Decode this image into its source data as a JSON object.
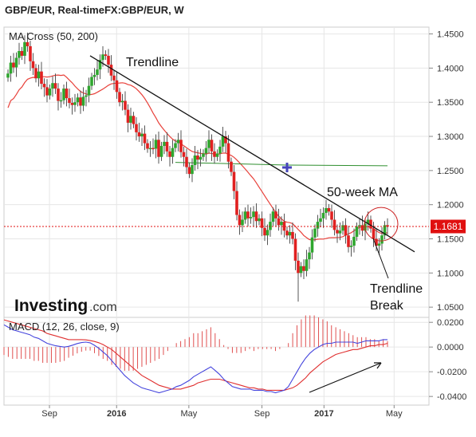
{
  "header": {
    "title": "GBP/EUR, Real-timeFX:GBP/EUR, W"
  },
  "colors": {
    "up": "#2ea62e",
    "down": "#e02020",
    "ma50": "#e8413a",
    "ma200": "#2f8f2f",
    "macd_line": "#4444dd",
    "signal_line": "#e03030",
    "hist": "#e05050",
    "trendline": "#111111",
    "price_marker": "#e01010",
    "grid": "#e6e6e6"
  },
  "chart_data": [
    {
      "type": "candlestick",
      "panel": "price",
      "legend": "MA Cross (50, 200)",
      "x_ticks": [
        "Sep",
        "2016",
        "May",
        "Sep",
        "2017",
        "May"
      ],
      "y_ticks": [
        "1.4500",
        "1.4000",
        "1.3500",
        "1.3000",
        "1.2500",
        "1.2000",
        "1.1500",
        "1.1000",
        "1.0500"
      ],
      "ylim": [
        1.035,
        1.46
      ],
      "current_price": "1.1681",
      "current_price_value": 1.1681,
      "annotations": {
        "trendline": "Trendline",
        "ma_label": "50-week MA",
        "break_label_1": "Trendline",
        "break_label_2": "Break"
      },
      "closes": [
        1.392,
        1.408,
        1.401,
        1.415,
        1.425,
        1.418,
        1.438,
        1.432,
        1.41,
        1.4,
        1.385,
        1.395,
        1.377,
        1.372,
        1.36,
        1.37,
        1.378,
        1.37,
        1.352,
        1.353,
        1.37,
        1.356,
        1.349,
        1.346,
        1.35,
        1.357,
        1.345,
        1.358,
        1.36,
        1.374,
        1.387,
        1.39,
        1.398,
        1.412,
        1.42,
        1.418,
        1.405,
        1.389,
        1.382,
        1.365,
        1.35,
        1.352,
        1.339,
        1.32,
        1.33,
        1.318,
        1.306,
        1.3,
        1.304,
        1.29,
        1.282,
        1.283,
        1.282,
        1.295,
        1.27,
        1.286,
        1.292,
        1.278,
        1.27,
        1.283,
        1.29,
        1.295,
        1.277,
        1.27,
        1.255,
        1.245,
        1.258,
        1.272,
        1.266,
        1.27,
        1.275,
        1.283,
        1.295,
        1.278,
        1.27,
        1.275,
        1.285,
        1.3,
        1.29,
        1.263,
        1.248,
        1.22,
        1.185,
        1.17,
        1.178,
        1.19,
        1.18,
        1.182,
        1.19,
        1.176,
        1.18,
        1.166,
        1.155,
        1.163,
        1.175,
        1.19,
        1.18,
        1.17,
        1.175,
        1.162,
        1.155,
        1.16,
        1.15,
        1.118,
        1.1,
        1.11,
        1.103,
        1.12,
        1.13,
        1.152,
        1.165,
        1.175,
        1.18,
        1.188,
        1.195,
        1.19,
        1.178,
        1.163,
        1.158,
        1.162,
        1.17,
        1.155,
        1.138,
        1.14,
        1.153,
        1.168,
        1.17,
        1.162,
        1.172,
        1.178,
        1.165,
        1.15,
        1.14,
        1.143,
        1.155,
        1.17,
        1.168
      ],
      "macd": [
        0.018,
        0.016,
        0.014,
        0.013,
        0.012,
        0.011,
        0.01,
        0.008,
        0.007,
        0.005,
        0.003,
        0.002,
        0.001,
        0.0005,
        0,
        0.0006,
        0.0016,
        0.0028,
        0.0036,
        0.004,
        0.0034,
        0.0014,
        -0.001,
        -0.004,
        -0.007,
        -0.011,
        -0.015,
        -0.019,
        -0.023,
        -0.026,
        -0.029,
        -0.031,
        -0.033,
        -0.034,
        -0.035,
        -0.036,
        -0.037,
        -0.036,
        -0.035,
        -0.034,
        -0.032,
        -0.031,
        -0.029,
        -0.027,
        -0.024,
        -0.022,
        -0.02,
        -0.018,
        -0.016,
        -0.019,
        -0.022,
        -0.026,
        -0.029,
        -0.032,
        -0.033,
        -0.034,
        -0.034,
        -0.034,
        -0.035,
        -0.035,
        -0.035,
        -0.036,
        -0.036,
        -0.037,
        -0.036,
        -0.035,
        -0.032,
        -0.026,
        -0.02,
        -0.014,
        -0.009,
        -0.005,
        -0.002,
        0,
        0.002,
        0.003,
        0.003,
        0.004,
        0.004,
        0.004,
        0.004,
        0.004,
        0.003,
        0.004,
        0.005,
        0.005,
        0.005,
        0.005,
        0.006,
        0.006
      ],
      "signal": [
        0.022,
        0.021,
        0.02,
        0.019,
        0.018,
        0.017,
        0.016,
        0.015,
        0.014,
        0.013,
        0.011,
        0.01,
        0.009,
        0.008,
        0.007,
        0.006,
        0.006,
        0.006,
        0.006,
        0.0058,
        0.0052,
        0.0045,
        0.0035,
        0.002,
        0,
        -0.002,
        -0.005,
        -0.008,
        -0.011,
        -0.014,
        -0.017,
        -0.02,
        -0.023,
        -0.025,
        -0.027,
        -0.029,
        -0.031,
        -0.032,
        -0.033,
        -0.034,
        -0.034,
        -0.034,
        -0.033,
        -0.032,
        -0.031,
        -0.029,
        -0.028,
        -0.027,
        -0.026,
        -0.026,
        -0.026,
        -0.027,
        -0.028,
        -0.029,
        -0.03,
        -0.031,
        -0.032,
        -0.033,
        -0.033,
        -0.034,
        -0.034,
        -0.035,
        -0.035,
        -0.035,
        -0.035,
        -0.035,
        -0.034,
        -0.033,
        -0.031,
        -0.028,
        -0.025,
        -0.021,
        -0.018,
        -0.015,
        -0.012,
        -0.01,
        -0.008,
        -0.006,
        -0.005,
        -0.004,
        -0.003,
        -0.002,
        -0.002,
        -0.001,
        0,
        0.001,
        0.001,
        0.002,
        0.002,
        0.003
      ]
    },
    {
      "type": "line",
      "panel": "macd",
      "legend": "MACD (12, 26, close, 9)",
      "y_ticks": [
        "0.0200",
        "0.0000",
        "-0.0200",
        "-0.0400"
      ],
      "ylim": [
        -0.047,
        0.024
      ]
    }
  ],
  "watermark": {
    "brand": "Investing",
    "suffix": ".com"
  }
}
